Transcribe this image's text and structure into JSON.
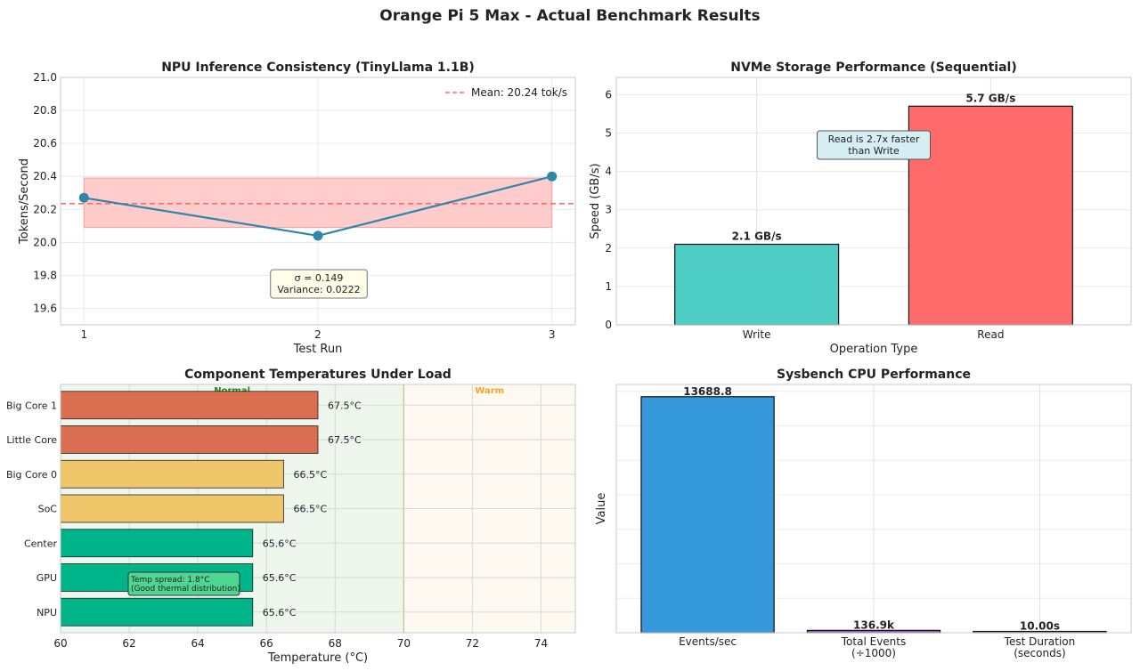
{
  "title": "Orange Pi 5 Max - Actual Benchmark Results",
  "colors": {
    "npu_line": "#2e86ab",
    "mean_line": "#ff6b6b",
    "band": "#ffc9c9",
    "write_bar": "#4ecdc4",
    "read_bar": "#ff6b6b",
    "temp_hot": "#d96f50",
    "temp_mid": "#f0c66a",
    "temp_cool": "#00b48a",
    "normal_zone": "#eef6ee",
    "warm_zone": "#fdf9f0",
    "normal_label": "#1a8a1a",
    "warm_label": "#f5a623",
    "cpu_events": "#3498db",
    "cpu_total": "#9b59b6",
    "cpu_duration": "#e67e22"
  },
  "chart_data": [
    {
      "type": "line",
      "title": "NPU Inference Consistency (TinyLlama 1.1B)",
      "xlabel": "Test Run",
      "ylabel": "Tokens/Second",
      "x": [
        1,
        2,
        3
      ],
      "values": [
        20.27,
        20.04,
        20.4
      ],
      "xticks": [
        "1",
        "2",
        "3"
      ],
      "yticks": [
        "19.6",
        "19.8",
        "20.0",
        "20.2",
        "20.4",
        "20.6",
        "20.8",
        "21.0"
      ],
      "ylim": [
        19.5,
        21.0
      ],
      "mean": 20.235,
      "band": [
        20.09,
        20.39
      ],
      "legend": "Mean: 20.24 tok/s",
      "annotation": [
        "σ = 0.149",
        "Variance: 0.0222"
      ]
    },
    {
      "type": "bar",
      "title": "NVMe Storage Performance (Sequential)",
      "xlabel": "Operation Type",
      "ylabel": "Speed (GB/s)",
      "categories": [
        "Write",
        "Read"
      ],
      "values": [
        2.1,
        5.7
      ],
      "labels": [
        "2.1 GB/s",
        "5.7 GB/s"
      ],
      "yticks": [
        "0",
        "1",
        "2",
        "3",
        "4",
        "5",
        "6"
      ],
      "ylim": [
        0,
        6.45
      ],
      "annotation": [
        "Read is 2.7x faster",
        "than Write"
      ]
    },
    {
      "type": "bar",
      "orientation": "horizontal",
      "title": "Component Temperatures Under Load",
      "xlabel": "Temperature (°C)",
      "categories": [
        "NPU",
        "GPU",
        "Center",
        "SoC",
        "Big Core 0",
        "Little Core",
        "Big Core 1"
      ],
      "values": [
        65.6,
        65.6,
        65.6,
        66.5,
        66.5,
        67.5,
        67.5
      ],
      "labels": [
        "65.6°C",
        "65.6°C",
        "65.6°C",
        "66.5°C",
        "66.5°C",
        "67.5°C",
        "67.5°C"
      ],
      "xticks": [
        "60",
        "62",
        "64",
        "66",
        "68",
        "70",
        "72",
        "74"
      ],
      "xlim": [
        60,
        75
      ],
      "zones": [
        {
          "label": "Normal",
          "from": 60,
          "to": 70
        },
        {
          "label": "Warm",
          "from": 70,
          "to": 75
        }
      ],
      "annotation": [
        "Temp spread: 1.8°C",
        "(Good thermal distribution)"
      ]
    },
    {
      "type": "bar",
      "title": "Sysbench CPU Performance",
      "ylabel": "Value",
      "categories": [
        [
          "Events/sec"
        ],
        [
          "Total Events",
          "(÷1000)"
        ],
        [
          "Test Duration",
          "(seconds)"
        ]
      ],
      "values": [
        13688.8,
        136.9,
        10.0
      ],
      "labels": [
        "13688.8",
        "136.9k",
        "10.00s"
      ],
      "ylim": [
        0,
        14400
      ]
    }
  ]
}
